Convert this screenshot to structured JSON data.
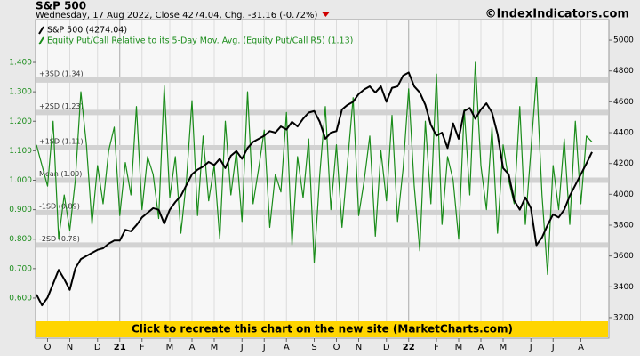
{
  "chart_data": {
    "type": "line",
    "title": "S&P 500",
    "subtitle": "Wednesday, 17 Aug 2022, Close 4274.04, Chg. -31.16 (-0.72%)",
    "source": "©IndexIndicators.com",
    "banner": "Click to recreate this chart on the new site (MarketCharts.com)",
    "categories": [
      null,
      null,
      "O",
      null,
      null,
      null,
      "N",
      null,
      null,
      null,
      null,
      "D",
      null,
      null,
      null,
      "21",
      null,
      null,
      null,
      "F",
      null,
      null,
      null,
      null,
      "M",
      null,
      null,
      null,
      "A",
      null,
      null,
      null,
      "M",
      null,
      null,
      null,
      null,
      "J",
      null,
      null,
      null,
      "J",
      null,
      null,
      null,
      "A",
      null,
      null,
      null,
      null,
      "S",
      null,
      null,
      null,
      "O",
      null,
      null,
      null,
      "N",
      null,
      null,
      null,
      null,
      "D",
      null,
      null,
      null,
      "22",
      null,
      null,
      null,
      null,
      "F",
      null,
      null,
      null,
      "M",
      null,
      null,
      null,
      "A",
      null,
      null,
      null,
      "M",
      null,
      null,
      null,
      null,
      "J",
      null,
      null,
      null,
      "J",
      null,
      null,
      null,
      null,
      "A",
      null,
      null
    ],
    "series": [
      {
        "name": "Equity Put/Call Relative to its 5-Day Mov. Avg. (Equity Put/Call R5) (1.13)",
        "color": "#1a8c1a",
        "values": [
          1.12,
          1.05,
          0.98,
          1.2,
          0.8,
          0.95,
          0.83,
          1.0,
          1.3,
          1.12,
          0.85,
          1.05,
          0.92,
          1.1,
          1.18,
          0.88,
          1.06,
          0.95,
          1.25,
          0.9,
          1.08,
          1.02,
          0.87,
          1.32,
          0.94,
          1.08,
          0.82,
          1.0,
          1.27,
          0.88,
          1.15,
          0.93,
          1.05,
          0.8,
          1.2,
          0.95,
          1.1,
          0.86,
          1.3,
          0.92,
          1.04,
          1.17,
          0.84,
          1.02,
          0.96,
          1.23,
          0.78,
          1.08,
          0.94,
          1.14,
          0.72,
          1.02,
          1.25,
          0.9,
          1.12,
          0.84,
          1.06,
          1.28,
          0.88,
          1.0,
          1.15,
          0.81,
          1.1,
          0.93,
          1.22,
          0.86,
          1.04,
          1.31,
          0.98,
          0.76,
          1.2,
          0.92,
          1.36,
          0.85,
          1.08,
          1.0,
          0.8,
          1.24,
          0.95,
          1.4,
          1.05,
          0.9,
          1.18,
          0.82,
          1.12,
          1.0,
          0.92,
          1.25,
          0.85,
          1.1,
          1.35,
          0.95,
          0.68,
          1.05,
          0.9,
          1.14,
          0.85,
          1.2,
          0.92,
          1.15,
          1.13
        ]
      },
      {
        "name": "S&P 500 (4274.04)",
        "color": "#000000",
        "axis": "y2",
        "values": [
          3350,
          3280,
          3330,
          3420,
          3510,
          3450,
          3380,
          3520,
          3580,
          3600,
          3620,
          3640,
          3650,
          3680,
          3700,
          3700,
          3770,
          3760,
          3800,
          3850,
          3880,
          3910,
          3900,
          3810,
          3900,
          3950,
          3990,
          4060,
          4130,
          4160,
          4180,
          4210,
          4190,
          4230,
          4170,
          4250,
          4280,
          4230,
          4300,
          4340,
          4360,
          4380,
          4410,
          4400,
          4440,
          4420,
          4470,
          4440,
          4490,
          4530,
          4540,
          4470,
          4360,
          4400,
          4410,
          4550,
          4580,
          4600,
          4650,
          4680,
          4700,
          4660,
          4700,
          4600,
          4690,
          4700,
          4770,
          4790,
          4700,
          4660,
          4580,
          4450,
          4380,
          4400,
          4300,
          4460,
          4360,
          4540,
          4560,
          4490,
          4550,
          4590,
          4530,
          4390,
          4170,
          4130,
          3960,
          3900,
          3980,
          3910,
          3670,
          3720,
          3800,
          3870,
          3850,
          3900,
          3990,
          4060,
          4130,
          4200,
          4274.04
        ]
      }
    ],
    "legend_order": [
      1,
      0
    ],
    "reference_lines": [
      {
        "value": 1.34,
        "label": "+3SD (1.34)"
      },
      {
        "value": 1.23,
        "label": "+2SD (1.23)"
      },
      {
        "value": 1.11,
        "label": "+1SD (1.11)"
      },
      {
        "value": 1.0,
        "label": "Mean (1.00)"
      },
      {
        "value": 0.89,
        "label": "-1SD (0.89)"
      },
      {
        "value": 0.78,
        "label": "-2SD (0.78)"
      }
    ],
    "ylim": [
      0.464,
      1.545
    ],
    "yticks": [
      {
        "value": 0.6,
        "label": "0.600"
      },
      {
        "value": 0.7,
        "label": "0.700"
      },
      {
        "value": 0.8,
        "label": "0.800"
      },
      {
        "value": 0.9,
        "label": "0.900"
      },
      {
        "value": 1.0,
        "label": "1.000"
      },
      {
        "value": 1.1,
        "label": "1.100"
      },
      {
        "value": 1.2,
        "label": "1.200"
      },
      {
        "value": 1.3,
        "label": "1.300"
      },
      {
        "value": 1.4,
        "label": "1.400"
      }
    ],
    "y2lim": [
      3067,
      5133
    ],
    "y2ticks": [
      3200,
      3400,
      3600,
      3800,
      4000,
      4200,
      4400,
      4600,
      4800,
      5000
    ],
    "grid": true
  }
}
